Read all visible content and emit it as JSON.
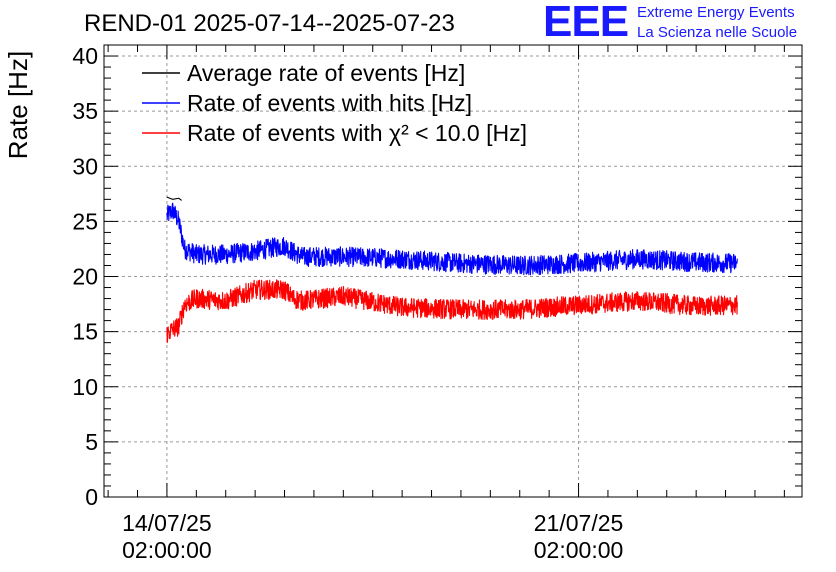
{
  "header": {
    "title": "REND-01 2025-07-14--2025-07-23",
    "logo_text": "EEE",
    "logo_line1": "Extreme Energy Events",
    "logo_line2": "La Scienza nelle Scuole"
  },
  "chart_data": {
    "type": "line",
    "ylabel": "Rate [Hz]",
    "ylim": [
      0,
      41
    ],
    "yticks": [
      0,
      5,
      10,
      15,
      20,
      25,
      30,
      35,
      40
    ],
    "x_tick_labels": [
      {
        "date": "14/07/25",
        "time": "02:00:00",
        "day": 0
      },
      {
        "date": "21/07/25",
        "time": "02:00:00",
        "day": 7
      }
    ],
    "xlim_days": [
      -1.07,
      10.8
    ],
    "grid": true,
    "legend_position": "top-left",
    "series": [
      {
        "name": "Average rate of events [Hz]",
        "color": "#000000",
        "x_days": [
          0.0,
          0.1,
          0.2,
          0.25
        ],
        "values": [
          27.2,
          27.0,
          27.1,
          26.9
        ]
      },
      {
        "name": "Rate of events with hits [Hz]",
        "color": "#0000ff",
        "x_days": [
          0.0,
          0.1,
          0.2,
          0.3,
          0.5,
          1.0,
          1.5,
          2.0,
          2.15,
          2.3,
          3.0,
          4.0,
          5.0,
          6.0,
          7.0,
          8.0,
          9.0,
          9.7
        ],
        "values": [
          25.5,
          26.0,
          25.0,
          22.5,
          22.0,
          22.0,
          22.3,
          22.8,
          22.2,
          21.8,
          21.8,
          21.6,
          21.2,
          21.0,
          21.2,
          21.6,
          21.3,
          21.2
        ],
        "noise": 0.9
      },
      {
        "name": "Rate of events with χ² < 10.0 [Hz]",
        "color": "#ff0000",
        "x_days": [
          0.0,
          0.1,
          0.2,
          0.3,
          0.5,
          1.0,
          1.5,
          2.0,
          2.15,
          2.3,
          3.0,
          4.0,
          5.0,
          6.0,
          7.0,
          8.0,
          9.0,
          9.7
        ],
        "values": [
          14.8,
          15.2,
          15.5,
          17.5,
          18.0,
          17.8,
          18.8,
          18.8,
          18.0,
          17.8,
          18.2,
          17.2,
          17.0,
          17.0,
          17.4,
          17.8,
          17.3,
          17.4
        ],
        "noise": 0.9
      }
    ]
  }
}
